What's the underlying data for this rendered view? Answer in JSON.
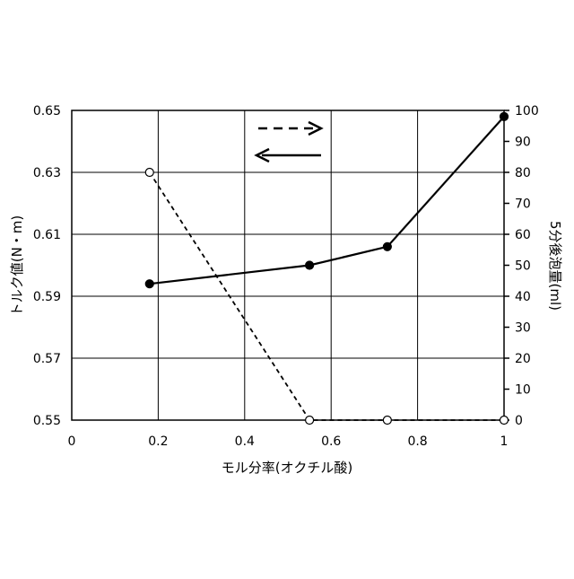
{
  "chart_data": {
    "type": "line",
    "xlabel": "モル分率(オクチル酸)",
    "ylabel_left": "トルク値(N・m)",
    "ylabel_right": "5分後泡量(ml)",
    "x_ticks": [
      "0",
      "0.2",
      "0.4",
      "0.6",
      "0.8",
      "1"
    ],
    "y_left_ticks": [
      "0.65",
      "0.63",
      "0.61",
      "0.59",
      "0.57",
      "0.55"
    ],
    "y_right_ticks": [
      "100",
      "90",
      "80",
      "70",
      "60",
      "50",
      "40",
      "30",
      "20",
      "10",
      "0"
    ],
    "xlim": [
      0,
      1
    ],
    "ylim_left": [
      0.55,
      0.65
    ],
    "ylim_right": [
      0,
      100
    ],
    "grid": true,
    "legend": "top-center, arrows indicate axis: dashed → right axis, solid ← left axis",
    "series": [
      {
        "axis": "left",
        "style": "solid",
        "marker": "filled-circle",
        "points": [
          [
            0.18,
            0.594
          ],
          [
            0.55,
            0.6
          ],
          [
            0.73,
            0.606
          ],
          [
            1.0,
            0.648
          ]
        ]
      },
      {
        "axis": "right",
        "style": "dashed",
        "marker": "open-circle",
        "points": [
          [
            0.18,
            80
          ],
          [
            0.55,
            0
          ],
          [
            0.73,
            0
          ],
          [
            1.0,
            0
          ]
        ]
      }
    ]
  }
}
